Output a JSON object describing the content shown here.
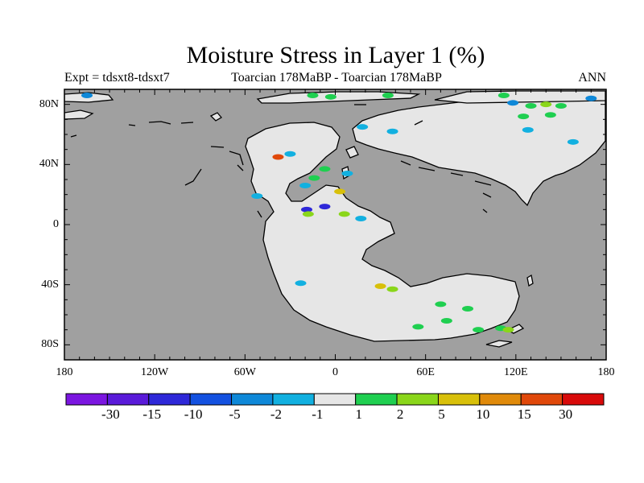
{
  "title": "Moisture Stress in Layer 1 (%)",
  "subtitle_left": "Expt = tdsxt8-tdsxt7",
  "subtitle_center": "Toarcian 178MaBP - Toarcian 178MaBP",
  "subtitle_right": "ANN",
  "map": {
    "lon_range": [
      -180,
      180
    ],
    "lat_range": [
      -90,
      90
    ],
    "ocean_color": "#a0a0a0",
    "land_color": "#e6e6e6",
    "lat_ticks": [
      {
        "value": 80,
        "label": "80N"
      },
      {
        "value": 40,
        "label": "40N"
      },
      {
        "value": 0,
        "label": "0"
      },
      {
        "value": -40,
        "label": "40S"
      },
      {
        "value": -80,
        "label": "80S"
      }
    ],
    "lon_ticks": [
      {
        "value": -180,
        "label": "180"
      },
      {
        "value": -120,
        "label": "120W"
      },
      {
        "value": -60,
        "label": "60W"
      },
      {
        "value": 0,
        "label": "0"
      },
      {
        "value": 60,
        "label": "60E"
      },
      {
        "value": 120,
        "label": "120E"
      },
      {
        "value": 180,
        "label": "180"
      }
    ]
  },
  "colorbar": {
    "colors": [
      "#7b16e0",
      "#5a1ad9",
      "#2e28d8",
      "#1351e0",
      "#0e88d8",
      "#12b0e0",
      "#e6e6e6",
      "#1fcf50",
      "#8ad61a",
      "#d8c00a",
      "#e08a0a",
      "#e0480a",
      "#d80a0a"
    ],
    "labels": [
      "-30",
      "-15",
      "-10",
      "-5",
      "-2",
      "-1",
      "1",
      "2",
      "5",
      "10",
      "15",
      "30"
    ]
  },
  "anomalies": [
    {
      "lon": -30,
      "lat": 47,
      "color": "#12b0e0"
    },
    {
      "lon": -38,
      "lat": 45,
      "color": "#e0480a"
    },
    {
      "lon": -7,
      "lat": 37,
      "color": "#1fcf50"
    },
    {
      "lon": 8,
      "lat": 34,
      "color": "#12b0e0"
    },
    {
      "lon": -20,
      "lat": 26,
      "color": "#12b0e0"
    },
    {
      "lon": -14,
      "lat": 31,
      "color": "#1fcf50"
    },
    {
      "lon": 3,
      "lat": 22,
      "color": "#d8c00a"
    },
    {
      "lon": -19,
      "lat": 10,
      "color": "#2e28d8"
    },
    {
      "lon": -7,
      "lat": 12,
      "color": "#2e28d8"
    },
    {
      "lon": -18,
      "lat": 7,
      "color": "#8ad61a"
    },
    {
      "lon": 6,
      "lat": 7,
      "color": "#8ad61a"
    },
    {
      "lon": 17,
      "lat": 4,
      "color": "#12b0e0"
    },
    {
      "lon": -52,
      "lat": 19,
      "color": "#12b0e0"
    },
    {
      "lon": -23,
      "lat": -39,
      "color": "#12b0e0"
    },
    {
      "lon": 30,
      "lat": -41,
      "color": "#d8c00a"
    },
    {
      "lon": 38,
      "lat": -43,
      "color": "#8ad61a"
    },
    {
      "lon": 70,
      "lat": -53,
      "color": "#1fcf50"
    },
    {
      "lon": 88,
      "lat": -56,
      "color": "#1fcf50"
    },
    {
      "lon": 74,
      "lat": -64,
      "color": "#1fcf50"
    },
    {
      "lon": 55,
      "lat": -68,
      "color": "#1fcf50"
    },
    {
      "lon": 95,
      "lat": -70,
      "color": "#1fcf50"
    },
    {
      "lon": 110,
      "lat": -69,
      "color": "#1fcf50"
    },
    {
      "lon": 115,
      "lat": -70,
      "color": "#8ad61a"
    },
    {
      "lon": -15,
      "lat": 86,
      "color": "#1fcf50"
    },
    {
      "lon": -3,
      "lat": 85,
      "color": "#1fcf50"
    },
    {
      "lon": 35,
      "lat": 86,
      "color": "#1fcf50"
    },
    {
      "lon": 112,
      "lat": 86,
      "color": "#1fcf50"
    },
    {
      "lon": 118,
      "lat": 81,
      "color": "#0e88d8"
    },
    {
      "lon": 130,
      "lat": 79,
      "color": "#1fcf50"
    },
    {
      "lon": 140,
      "lat": 80,
      "color": "#8ad61a"
    },
    {
      "lon": 150,
      "lat": 79,
      "color": "#1fcf50"
    },
    {
      "lon": 125,
      "lat": 72,
      "color": "#1fcf50"
    },
    {
      "lon": 143,
      "lat": 73,
      "color": "#1fcf50"
    },
    {
      "lon": 170,
      "lat": 84,
      "color": "#0e88d8"
    },
    {
      "lon": 18,
      "lat": 65,
      "color": "#12b0e0"
    },
    {
      "lon": 38,
      "lat": 62,
      "color": "#12b0e0"
    },
    {
      "lon": 128,
      "lat": 63,
      "color": "#12b0e0"
    },
    {
      "lon": 158,
      "lat": 55,
      "color": "#12b0e0"
    },
    {
      "lon": -165,
      "lat": 86,
      "color": "#0e88d8"
    }
  ]
}
